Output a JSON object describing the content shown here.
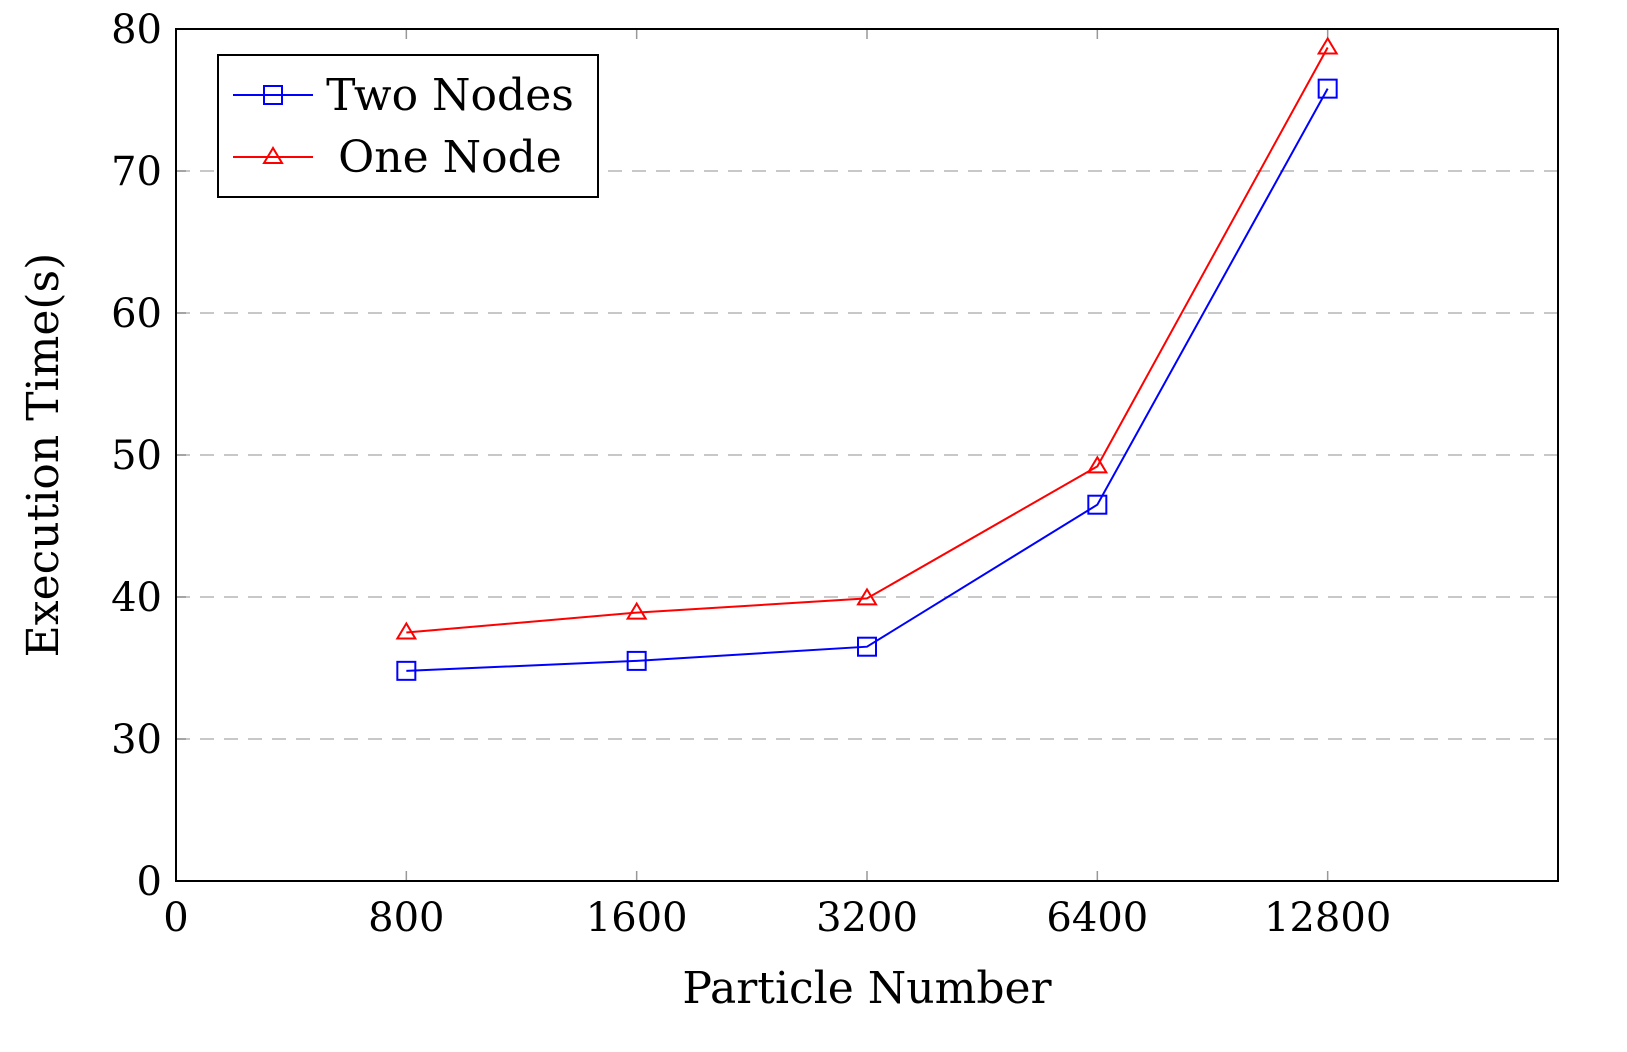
{
  "chart_data": {
    "type": "line",
    "title": "",
    "xlabel": "Particle Number",
    "ylabel": "Execution Time(s)",
    "xtick_labels": [
      "0",
      "800",
      "1600",
      "3200",
      "6400",
      "12800"
    ],
    "ytick_labels": [
      "0",
      "30",
      "40",
      "50",
      "60",
      "70",
      "80"
    ],
    "x": [
      800,
      1600,
      3200,
      6400,
      12800
    ],
    "ylim": [
      0,
      80
    ],
    "grid": "horizontal dashed",
    "legend_position": "top-left",
    "series": [
      {
        "name": "Two Nodes",
        "color": "#0000ff",
        "marker": "square",
        "values": [
          34.8,
          35.5,
          36.5,
          46.5,
          75.8
        ]
      },
      {
        "name": "One Node",
        "color": "#ff0000",
        "marker": "triangle",
        "values": [
          37.5,
          38.9,
          39.9,
          49.2,
          78.7
        ]
      }
    ]
  }
}
